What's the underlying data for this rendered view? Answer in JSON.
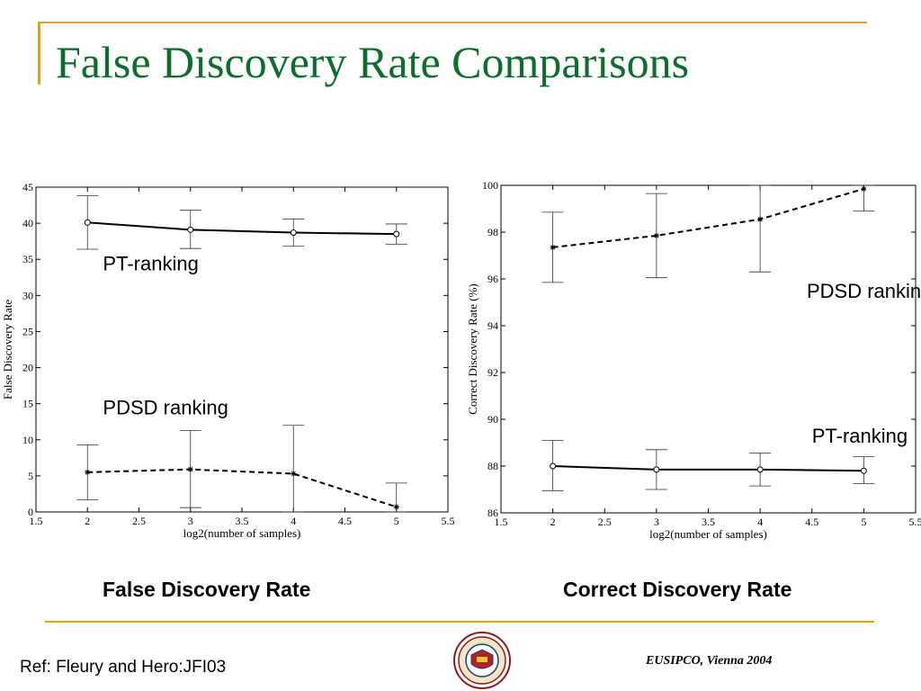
{
  "slide": {
    "title": "False Discovery Rate Comparisons",
    "ref": "Ref: Fleury and Hero:JFI03",
    "footer": "EUSIPCO, Vienna  2004",
    "seal_text": "THE UNIVERSITY OF MICHIGAN 1817",
    "accent_color": "#d9a520",
    "title_color": "#0f6b2e"
  },
  "captions": {
    "left": "False Discovery Rate",
    "right": "Correct Discovery Rate"
  },
  "chart_data": [
    {
      "type": "line",
      "title": "",
      "xlabel": "log2(number of samples)",
      "ylabel": "False Discovery Rate",
      "xlim": [
        1.5,
        5.5
      ],
      "ylim": [
        0,
        45
      ],
      "xticks": [
        "1.5",
        "2",
        "2.5",
        "3",
        "3.5",
        "4",
        "4.5",
        "5",
        "5.5"
      ],
      "yticks": [
        "0",
        "5",
        "10",
        "15",
        "20",
        "25",
        "30",
        "35",
        "40",
        "45"
      ],
      "grid": false,
      "annotations": [
        {
          "text": "PT-ranking",
          "x": 2.15,
          "y": 33.5
        },
        {
          "text": "PDSD ranking",
          "x": 2.15,
          "y": 13.5
        }
      ],
      "series": [
        {
          "x": [
            2,
            3,
            4,
            5
          ],
          "y": [
            40.1,
            39.1,
            38.7,
            38.5
          ],
          "lower": [
            36.4,
            36.5,
            36.8,
            37.1
          ],
          "upper": [
            43.8,
            41.8,
            40.6,
            39.9
          ],
          "style": "solid",
          "marker": "circle"
        },
        {
          "x": [
            2,
            3,
            4,
            5
          ],
          "y": [
            5.5,
            5.9,
            5.3,
            0.7
          ],
          "lower": [
            1.7,
            0.6,
            0,
            0
          ],
          "upper": [
            9.3,
            11.3,
            12.0,
            4.0
          ],
          "style": "dashed",
          "marker": "star"
        }
      ]
    },
    {
      "type": "line",
      "title": "",
      "xlabel": "log2(number of samples)",
      "ylabel": "Correct Discovery Rate (%)",
      "xlim": [
        1.5,
        5.5
      ],
      "ylim": [
        86,
        100
      ],
      "xticks": [
        "1.5",
        "2",
        "2.5",
        "3",
        "3.5",
        "4",
        "4.5",
        "5",
        "5.5"
      ],
      "yticks": [
        "86",
        "88",
        "90",
        "92",
        "94",
        "96",
        "98",
        "100"
      ],
      "grid": false,
      "annotations": [
        {
          "text": "PDSD ranking",
          "x": 4.45,
          "y": 95.2
        },
        {
          "text": "PT-ranking",
          "x": 4.5,
          "y": 89.0
        }
      ],
      "series": [
        {
          "x": [
            2,
            3,
            4,
            5
          ],
          "y": [
            97.35,
            97.85,
            98.55,
            99.85
          ],
          "lower": [
            95.85,
            96.05,
            96.3,
            98.9
          ],
          "upper": [
            98.85,
            99.65,
            100,
            100
          ],
          "style": "dashed",
          "marker": "star"
        },
        {
          "x": [
            2,
            3,
            4,
            5
          ],
          "y": [
            88.0,
            87.85,
            87.85,
            87.8
          ],
          "lower": [
            86.95,
            87.0,
            87.15,
            87.25
          ],
          "upper": [
            89.1,
            88.7,
            88.55,
            88.4
          ],
          "style": "solid",
          "marker": "circle"
        }
      ]
    }
  ]
}
